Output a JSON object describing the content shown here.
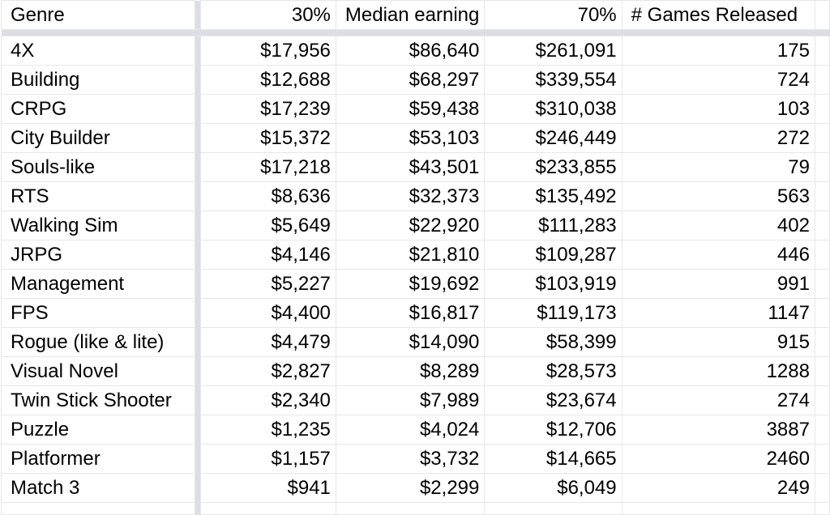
{
  "app": {
    "description_label": "spreadsheet-grid-with-frozen-header-row-and-frozen-first-column"
  },
  "colors": {
    "background": "#ffffff",
    "gridline": "#e7e7e7",
    "frozen_divider": "#dbdee4",
    "text": "#000000"
  },
  "table": {
    "headers": [
      "Genre",
      "30%",
      "Median earning",
      "70%",
      "# Games Released"
    ],
    "rows": [
      {
        "genre": "4X",
        "p30": "$17,956",
        "median": "$86,640",
        "p70": "$261,091",
        "games": "175"
      },
      {
        "genre": "Building",
        "p30": "$12,688",
        "median": "$68,297",
        "p70": "$339,554",
        "games": "724"
      },
      {
        "genre": "CRPG",
        "p30": "$17,239",
        "median": "$59,438",
        "p70": "$310,038",
        "games": "103"
      },
      {
        "genre": "City Builder",
        "p30": "$15,372",
        "median": "$53,103",
        "p70": "$246,449",
        "games": "272"
      },
      {
        "genre": "Souls-like",
        "p30": "$17,218",
        "median": "$43,501",
        "p70": "$233,855",
        "games": "79"
      },
      {
        "genre": "RTS",
        "p30": "$8,636",
        "median": "$32,373",
        "p70": "$135,492",
        "games": "563"
      },
      {
        "genre": "Walking Sim",
        "p30": "$5,649",
        "median": "$22,920",
        "p70": "$111,283",
        "games": "402"
      },
      {
        "genre": "JRPG",
        "p30": "$4,146",
        "median": "$21,810",
        "p70": "$109,287",
        "games": "446"
      },
      {
        "genre": "Management",
        "p30": "$5,227",
        "median": "$19,692",
        "p70": "$103,919",
        "games": "991"
      },
      {
        "genre": "FPS",
        "p30": "$4,400",
        "median": "$16,817",
        "p70": "$119,173",
        "games": "1147"
      },
      {
        "genre": "Rogue (like & lite)",
        "p30": "$4,479",
        "median": "$14,090",
        "p70": "$58,399",
        "games": "915"
      },
      {
        "genre": "Visual Novel",
        "p30": "$2,827",
        "median": "$8,289",
        "p70": "$28,573",
        "games": "1288"
      },
      {
        "genre": "Twin Stick Shooter",
        "p30": "$2,340",
        "median": "$7,989",
        "p70": "$23,674",
        "games": "274"
      },
      {
        "genre": "Puzzle",
        "p30": "$1,235",
        "median": "$4,024",
        "p70": "$12,706",
        "games": "3887"
      },
      {
        "genre": "Platformer",
        "p30": "$1,157",
        "median": "$3,732",
        "p70": "$14,665",
        "games": "2460"
      },
      {
        "genre": "Match 3",
        "p30": "$941",
        "median": "$2,299",
        "p70": "$6,049",
        "games": "249"
      }
    ]
  }
}
